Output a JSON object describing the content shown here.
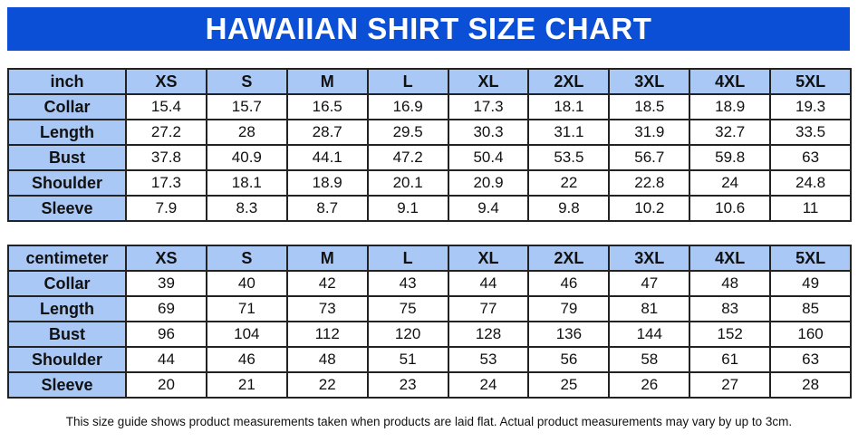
{
  "title": "HAWAIIAN SHIRT SIZE CHART",
  "sizes": [
    "XS",
    "S",
    "M",
    "L",
    "XL",
    "2XL",
    "3XL",
    "4XL",
    "5XL"
  ],
  "tables": {
    "inch": {
      "unit_label": "inch",
      "rows": [
        {
          "label": "Collar",
          "values": [
            "15.4",
            "15.7",
            "16.5",
            "16.9",
            "17.3",
            "18.1",
            "18.5",
            "18.9",
            "19.3"
          ]
        },
        {
          "label": "Length",
          "values": [
            "27.2",
            "28",
            "28.7",
            "29.5",
            "30.3",
            "31.1",
            "31.9",
            "32.7",
            "33.5"
          ]
        },
        {
          "label": "Bust",
          "values": [
            "37.8",
            "40.9",
            "44.1",
            "47.2",
            "50.4",
            "53.5",
            "56.7",
            "59.8",
            "63"
          ]
        },
        {
          "label": "Shoulder",
          "values": [
            "17.3",
            "18.1",
            "18.9",
            "20.1",
            "20.9",
            "22",
            "22.8",
            "24",
            "24.8"
          ]
        },
        {
          "label": "Sleeve",
          "values": [
            "7.9",
            "8.3",
            "8.7",
            "9.1",
            "9.4",
            "9.8",
            "10.2",
            "10.6",
            "11"
          ]
        }
      ]
    },
    "centimeter": {
      "unit_label": "centimeter",
      "rows": [
        {
          "label": "Collar",
          "values": [
            "39",
            "40",
            "42",
            "43",
            "44",
            "46",
            "47",
            "48",
            "49"
          ]
        },
        {
          "label": "Length",
          "values": [
            "69",
            "71",
            "73",
            "75",
            "77",
            "79",
            "81",
            "83",
            "85"
          ]
        },
        {
          "label": "Bust",
          "values": [
            "96",
            "104",
            "112",
            "120",
            "128",
            "136",
            "144",
            "152",
            "160"
          ]
        },
        {
          "label": "Shoulder",
          "values": [
            "44",
            "46",
            "48",
            "51",
            "53",
            "56",
            "58",
            "61",
            "63"
          ]
        },
        {
          "label": "Sleeve",
          "values": [
            "20",
            "21",
            "22",
            "23",
            "24",
            "25",
            "26",
            "27",
            "28"
          ]
        }
      ]
    }
  },
  "footnote": "This size guide shows product measurements taken when products are laid flat. Actual product measurements may vary by up to 3cm.",
  "colors": {
    "title_background": "#0a4fd6",
    "header_background": "#a9c8f5",
    "border": "#222222"
  }
}
